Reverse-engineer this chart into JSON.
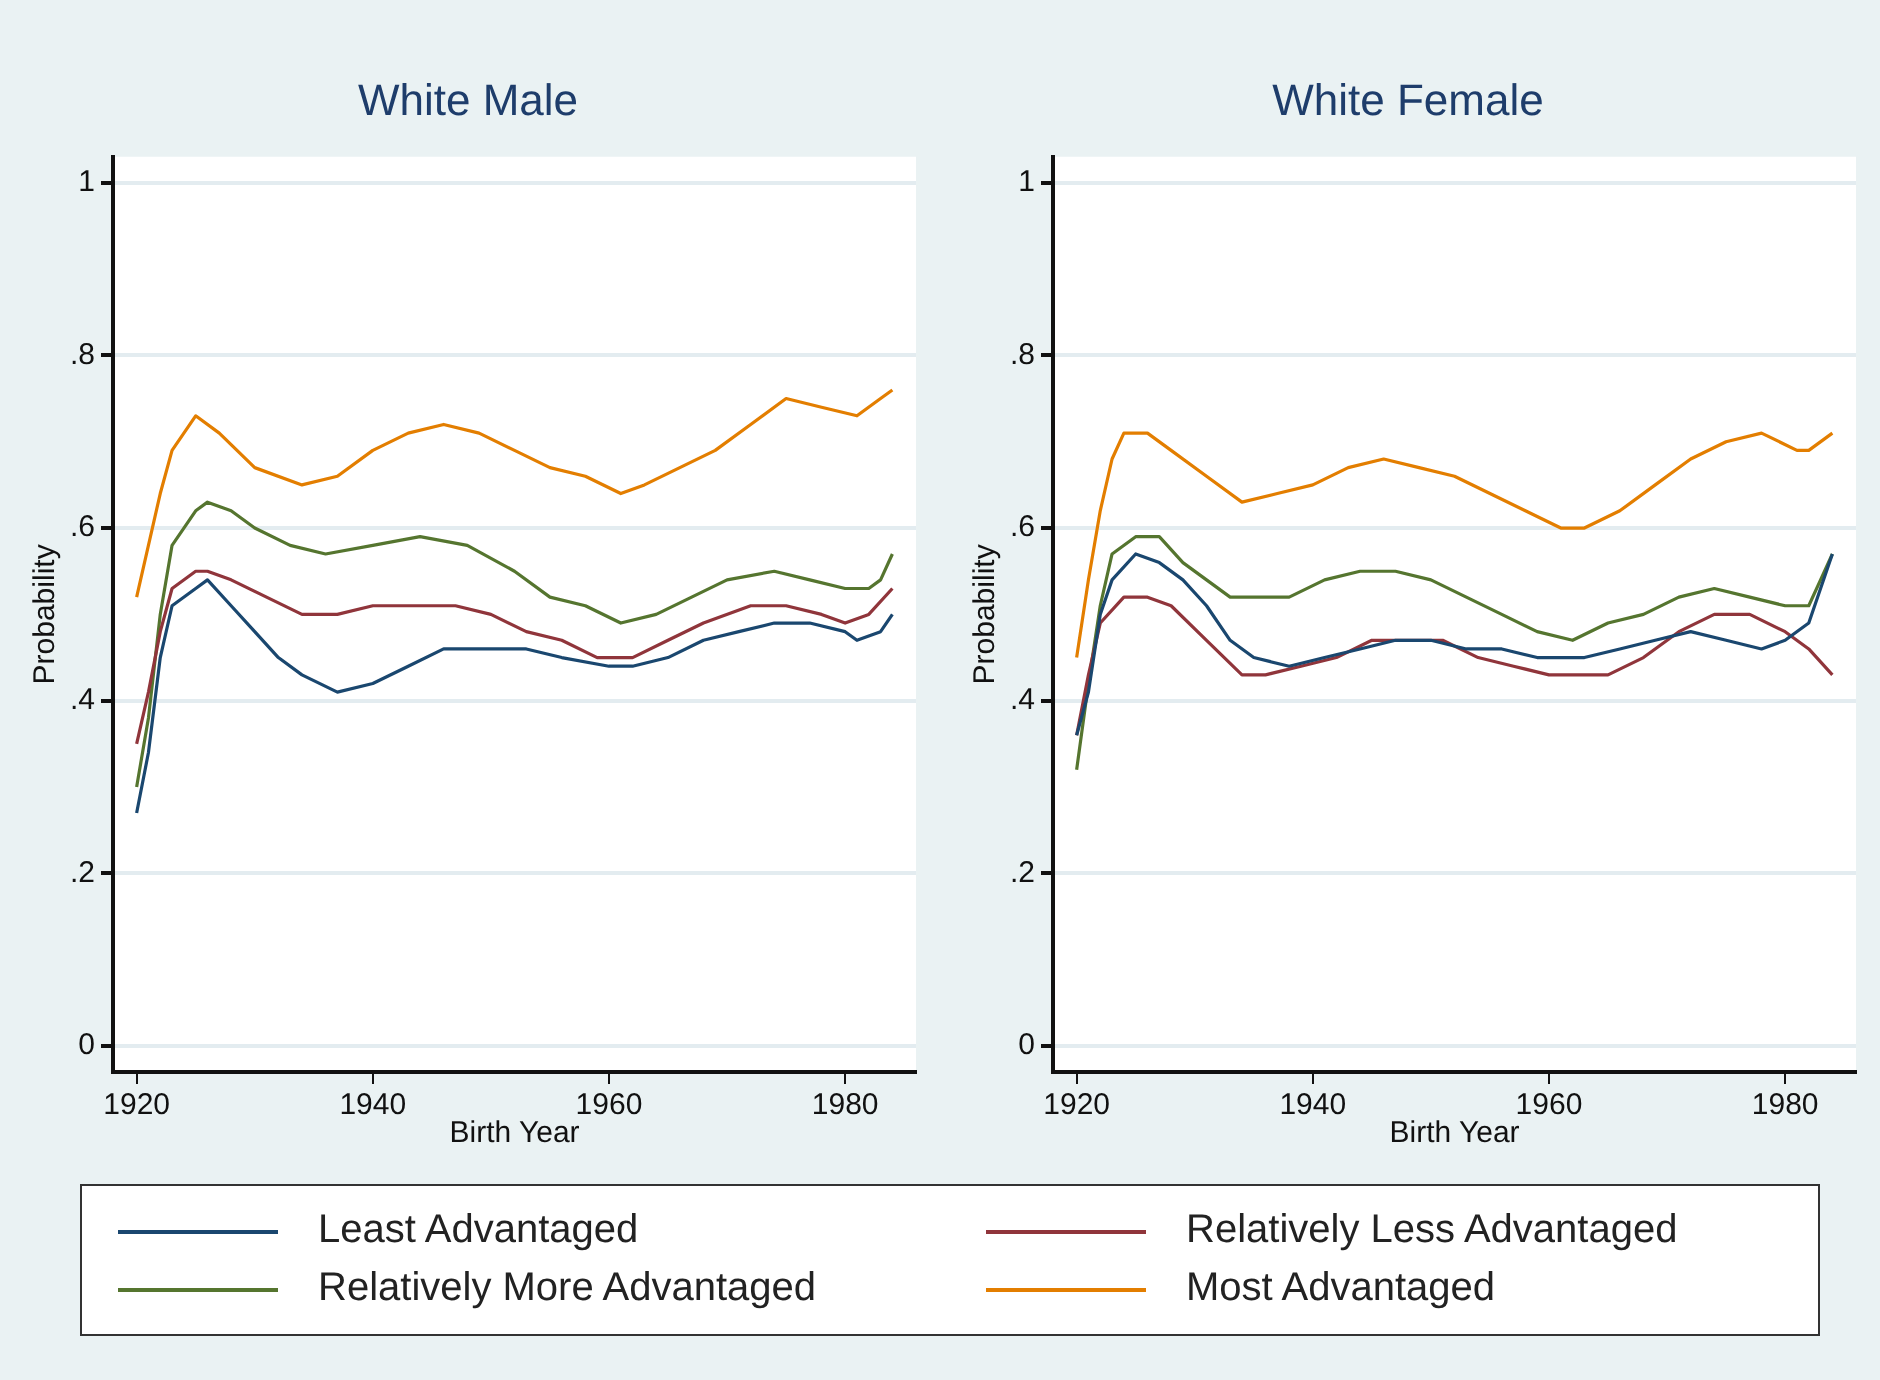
{
  "chart_data": [
    {
      "type": "line",
      "title": "White Male",
      "xlabel": "Birth Year",
      "ylabel": "Probability",
      "xlim": [
        1918,
        1986
      ],
      "xticks": [
        1920,
        1940,
        1960,
        1980
      ],
      "ylim": [
        -0.03,
        1.03
      ],
      "yticks": [
        {
          "value": 0,
          "label": "0"
        },
        {
          "value": 0.2,
          "label": ".2"
        },
        {
          "value": 0.4,
          "label": ".4"
        },
        {
          "value": 0.6,
          "label": ".6"
        },
        {
          "value": 0.8,
          "label": ".8"
        },
        {
          "value": 1,
          "label": "1"
        }
      ],
      "grid": "y",
      "legend": "bottom",
      "marker": "none",
      "series": [
        {
          "name": "Least Advantaged",
          "color": "#1a476f",
          "x": [
            1920,
            1921,
            1922,
            1923,
            1925,
            1926,
            1928,
            1930,
            1932,
            1934,
            1937,
            1940,
            1943,
            1946,
            1950,
            1953,
            1956,
            1960,
            1962,
            1965,
            1968,
            1971,
            1974,
            1977,
            1980,
            1981,
            1983,
            1984
          ],
          "values": [
            0.27,
            0.34,
            0.45,
            0.51,
            0.53,
            0.54,
            0.51,
            0.48,
            0.45,
            0.43,
            0.41,
            0.42,
            0.44,
            0.46,
            0.46,
            0.46,
            0.45,
            0.44,
            0.44,
            0.45,
            0.47,
            0.48,
            0.49,
            0.49,
            0.48,
            0.47,
            0.48,
            0.5
          ]
        },
        {
          "name": "Relatively Less Advantaged",
          "color": "#90353b",
          "x": [
            1920,
            1921,
            1922,
            1923,
            1925,
            1926,
            1928,
            1931,
            1934,
            1937,
            1940,
            1944,
            1947,
            1950,
            1953,
            1956,
            1959,
            1962,
            1965,
            1968,
            1972,
            1975,
            1978,
            1980,
            1982,
            1984
          ],
          "values": [
            0.35,
            0.41,
            0.48,
            0.53,
            0.55,
            0.55,
            0.54,
            0.52,
            0.5,
            0.5,
            0.51,
            0.51,
            0.51,
            0.5,
            0.48,
            0.47,
            0.45,
            0.45,
            0.47,
            0.49,
            0.51,
            0.51,
            0.5,
            0.49,
            0.5,
            0.53
          ]
        },
        {
          "name": "Relatively More Advantaged",
          "color": "#55752f",
          "x": [
            1920,
            1921,
            1922,
            1923,
            1925,
            1926,
            1928,
            1930,
            1933,
            1936,
            1940,
            1944,
            1948,
            1952,
            1955,
            1958,
            1961,
            1964,
            1967,
            1970,
            1974,
            1977,
            1980,
            1982,
            1983,
            1984
          ],
          "values": [
            0.3,
            0.38,
            0.5,
            0.58,
            0.62,
            0.63,
            0.62,
            0.6,
            0.58,
            0.57,
            0.58,
            0.59,
            0.58,
            0.55,
            0.52,
            0.51,
            0.49,
            0.5,
            0.52,
            0.54,
            0.55,
            0.54,
            0.53,
            0.53,
            0.54,
            0.57
          ]
        },
        {
          "name": "Most Advantaged",
          "color": "#e37e00",
          "x": [
            1920,
            1922,
            1923,
            1925,
            1927,
            1930,
            1934,
            1937,
            1940,
            1943,
            1946,
            1949,
            1952,
            1955,
            1958,
            1961,
            1963,
            1966,
            1969,
            1972,
            1975,
            1978,
            1981,
            1983,
            1984
          ],
          "values": [
            0.52,
            0.64,
            0.69,
            0.73,
            0.71,
            0.67,
            0.65,
            0.66,
            0.69,
            0.71,
            0.72,
            0.71,
            0.69,
            0.67,
            0.66,
            0.64,
            0.65,
            0.67,
            0.69,
            0.72,
            0.75,
            0.74,
            0.73,
            0.75,
            0.76
          ]
        }
      ]
    },
    {
      "type": "line",
      "title": "White Female",
      "xlabel": "Birth Year",
      "ylabel": "Probability",
      "xlim": [
        1918,
        1986
      ],
      "xticks": [
        1920,
        1940,
        1960,
        1980
      ],
      "ylim": [
        -0.03,
        1.03
      ],
      "yticks": [
        {
          "value": 0,
          "label": "0"
        },
        {
          "value": 0.2,
          "label": ".2"
        },
        {
          "value": 0.4,
          "label": ".4"
        },
        {
          "value": 0.6,
          "label": ".6"
        },
        {
          "value": 0.8,
          "label": ".8"
        },
        {
          "value": 1,
          "label": "1"
        }
      ],
      "grid": "y",
      "legend": "bottom",
      "marker": "none",
      "series": [
        {
          "name": "Least Advantaged",
          "color": "#1a476f",
          "x": [
            1920,
            1921,
            1922,
            1923,
            1925,
            1927,
            1929,
            1931,
            1933,
            1935,
            1938,
            1941,
            1944,
            1947,
            1950,
            1953,
            1956,
            1959,
            1963,
            1966,
            1969,
            1972,
            1975,
            1978,
            1980,
            1982,
            1983,
            1984
          ],
          "values": [
            0.36,
            0.41,
            0.5,
            0.54,
            0.57,
            0.56,
            0.54,
            0.51,
            0.47,
            0.45,
            0.44,
            0.45,
            0.46,
            0.47,
            0.47,
            0.46,
            0.46,
            0.45,
            0.45,
            0.46,
            0.47,
            0.48,
            0.47,
            0.46,
            0.47,
            0.49,
            0.53,
            0.57
          ]
        },
        {
          "name": "Relatively Less Advantaged",
          "color": "#90353b",
          "x": [
            1920,
            1921,
            1922,
            1924,
            1926,
            1928,
            1931,
            1934,
            1936,
            1939,
            1942,
            1945,
            1948,
            1951,
            1954,
            1957,
            1960,
            1963,
            1965,
            1968,
            1971,
            1974,
            1977,
            1980,
            1982,
            1984
          ],
          "values": [
            0.36,
            0.43,
            0.49,
            0.52,
            0.52,
            0.51,
            0.47,
            0.43,
            0.43,
            0.44,
            0.45,
            0.47,
            0.47,
            0.47,
            0.45,
            0.44,
            0.43,
            0.43,
            0.43,
            0.45,
            0.48,
            0.5,
            0.5,
            0.48,
            0.46,
            0.43
          ]
        },
        {
          "name": "Relatively More Advantaged",
          "color": "#55752f",
          "x": [
            1920,
            1921,
            1922,
            1923,
            1925,
            1927,
            1929,
            1931,
            1933,
            1935,
            1938,
            1941,
            1944,
            1947,
            1950,
            1953,
            1956,
            1959,
            1962,
            1965,
            1968,
            1971,
            1974,
            1977,
            1980,
            1982,
            1983,
            1984
          ],
          "values": [
            0.32,
            0.42,
            0.51,
            0.57,
            0.59,
            0.59,
            0.56,
            0.54,
            0.52,
            0.52,
            0.52,
            0.54,
            0.55,
            0.55,
            0.54,
            0.52,
            0.5,
            0.48,
            0.47,
            0.49,
            0.5,
            0.52,
            0.53,
            0.52,
            0.51,
            0.51,
            0.54,
            0.57
          ]
        },
        {
          "name": "Most Advantaged",
          "color": "#e37e00",
          "x": [
            1920,
            1921,
            1922,
            1923,
            1924,
            1926,
            1928,
            1931,
            1934,
            1937,
            1940,
            1943,
            1946,
            1949,
            1952,
            1955,
            1958,
            1961,
            1963,
            1966,
            1969,
            1972,
            1975,
            1978,
            1981,
            1982,
            1984
          ],
          "values": [
            0.45,
            0.54,
            0.62,
            0.68,
            0.71,
            0.71,
            0.69,
            0.66,
            0.63,
            0.64,
            0.65,
            0.67,
            0.68,
            0.67,
            0.66,
            0.64,
            0.62,
            0.6,
            0.6,
            0.62,
            0.65,
            0.68,
            0.7,
            0.71,
            0.69,
            0.69,
            0.71
          ]
        }
      ]
    }
  ]
}
